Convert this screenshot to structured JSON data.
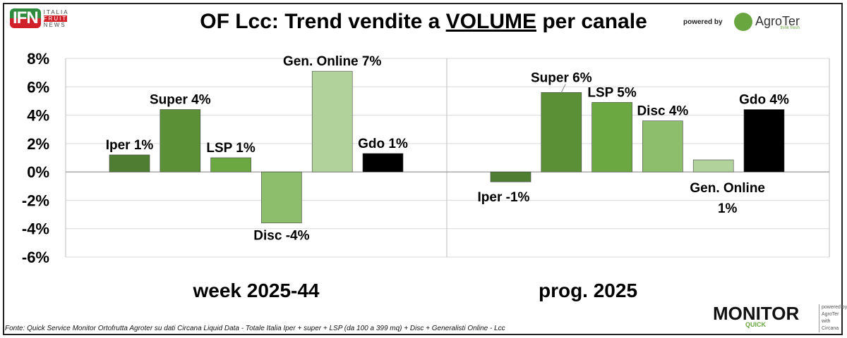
{
  "header": {
    "title_pre": "OF Lcc: Trend vendite a ",
    "title_u": "VOLUME",
    "title_post": " per canale",
    "powered_by": "powered by",
    "logo_left": "IFN ITALIA FRUIT NEWS",
    "logo_right": "AgroTer think fresh"
  },
  "footer": {
    "source": "Fonte: Quick Service Monitor Ortofrutta Agroter su dati Circana Liquid Data - Totale Italia Iper + super + LSP (da 100 a 399 mq) + Disc + Generalisti Online - Lcc",
    "logo": "MONITOR QUICK powered by AgroTer with Circana"
  },
  "chart_data": {
    "type": "bar",
    "title": "OF Lcc: Trend vendite a VOLUME per canale",
    "ylim": [
      -6,
      8
    ],
    "yticks": [
      "-6%",
      "-4%",
      "-2%",
      "0%",
      "2%",
      "4%",
      "6%",
      "8%"
    ],
    "yvals": [
      -6,
      -4,
      -2,
      0,
      2,
      4,
      6,
      8
    ],
    "grid": true,
    "series_colors": {
      "Iper": "#4f7d31",
      "Super": "#5b9036",
      "LSP": "#6ba842",
      "Disc": "#8dbe6c",
      "Gen. Online": "#b2d29c",
      "Gdo": "#000000"
    },
    "groups": [
      {
        "label": "week 2025-44",
        "bars": [
          {
            "cat": "Iper",
            "value": 1.2,
            "label": "Iper 1%"
          },
          {
            "cat": "Super",
            "value": 4.4,
            "label": "Super 4%"
          },
          {
            "cat": "LSP",
            "value": 1.0,
            "label": "LSP 1%"
          },
          {
            "cat": "Disc",
            "value": -3.6,
            "label": "Disc -4%"
          },
          {
            "cat": "Gen. Online",
            "value": 7.1,
            "label": "Gen. Online 7%"
          },
          {
            "cat": "Gdo",
            "value": 1.3,
            "label": "Gdo 1%"
          }
        ]
      },
      {
        "label": "prog. 2025",
        "bars": [
          {
            "cat": "Iper",
            "value": -0.7,
            "label": "Iper -1%"
          },
          {
            "cat": "Super",
            "value": 5.6,
            "label": "Super 6%"
          },
          {
            "cat": "LSP",
            "value": 4.9,
            "label": "LSP 5%"
          },
          {
            "cat": "Disc",
            "value": 3.6,
            "label": "Disc 4%"
          },
          {
            "cat": "Gen. Online",
            "value": 0.85,
            "label": "Gen. Online 1%"
          },
          {
            "cat": "Gdo",
            "value": 4.4,
            "label": "Gdo 4%"
          }
        ]
      }
    ]
  }
}
